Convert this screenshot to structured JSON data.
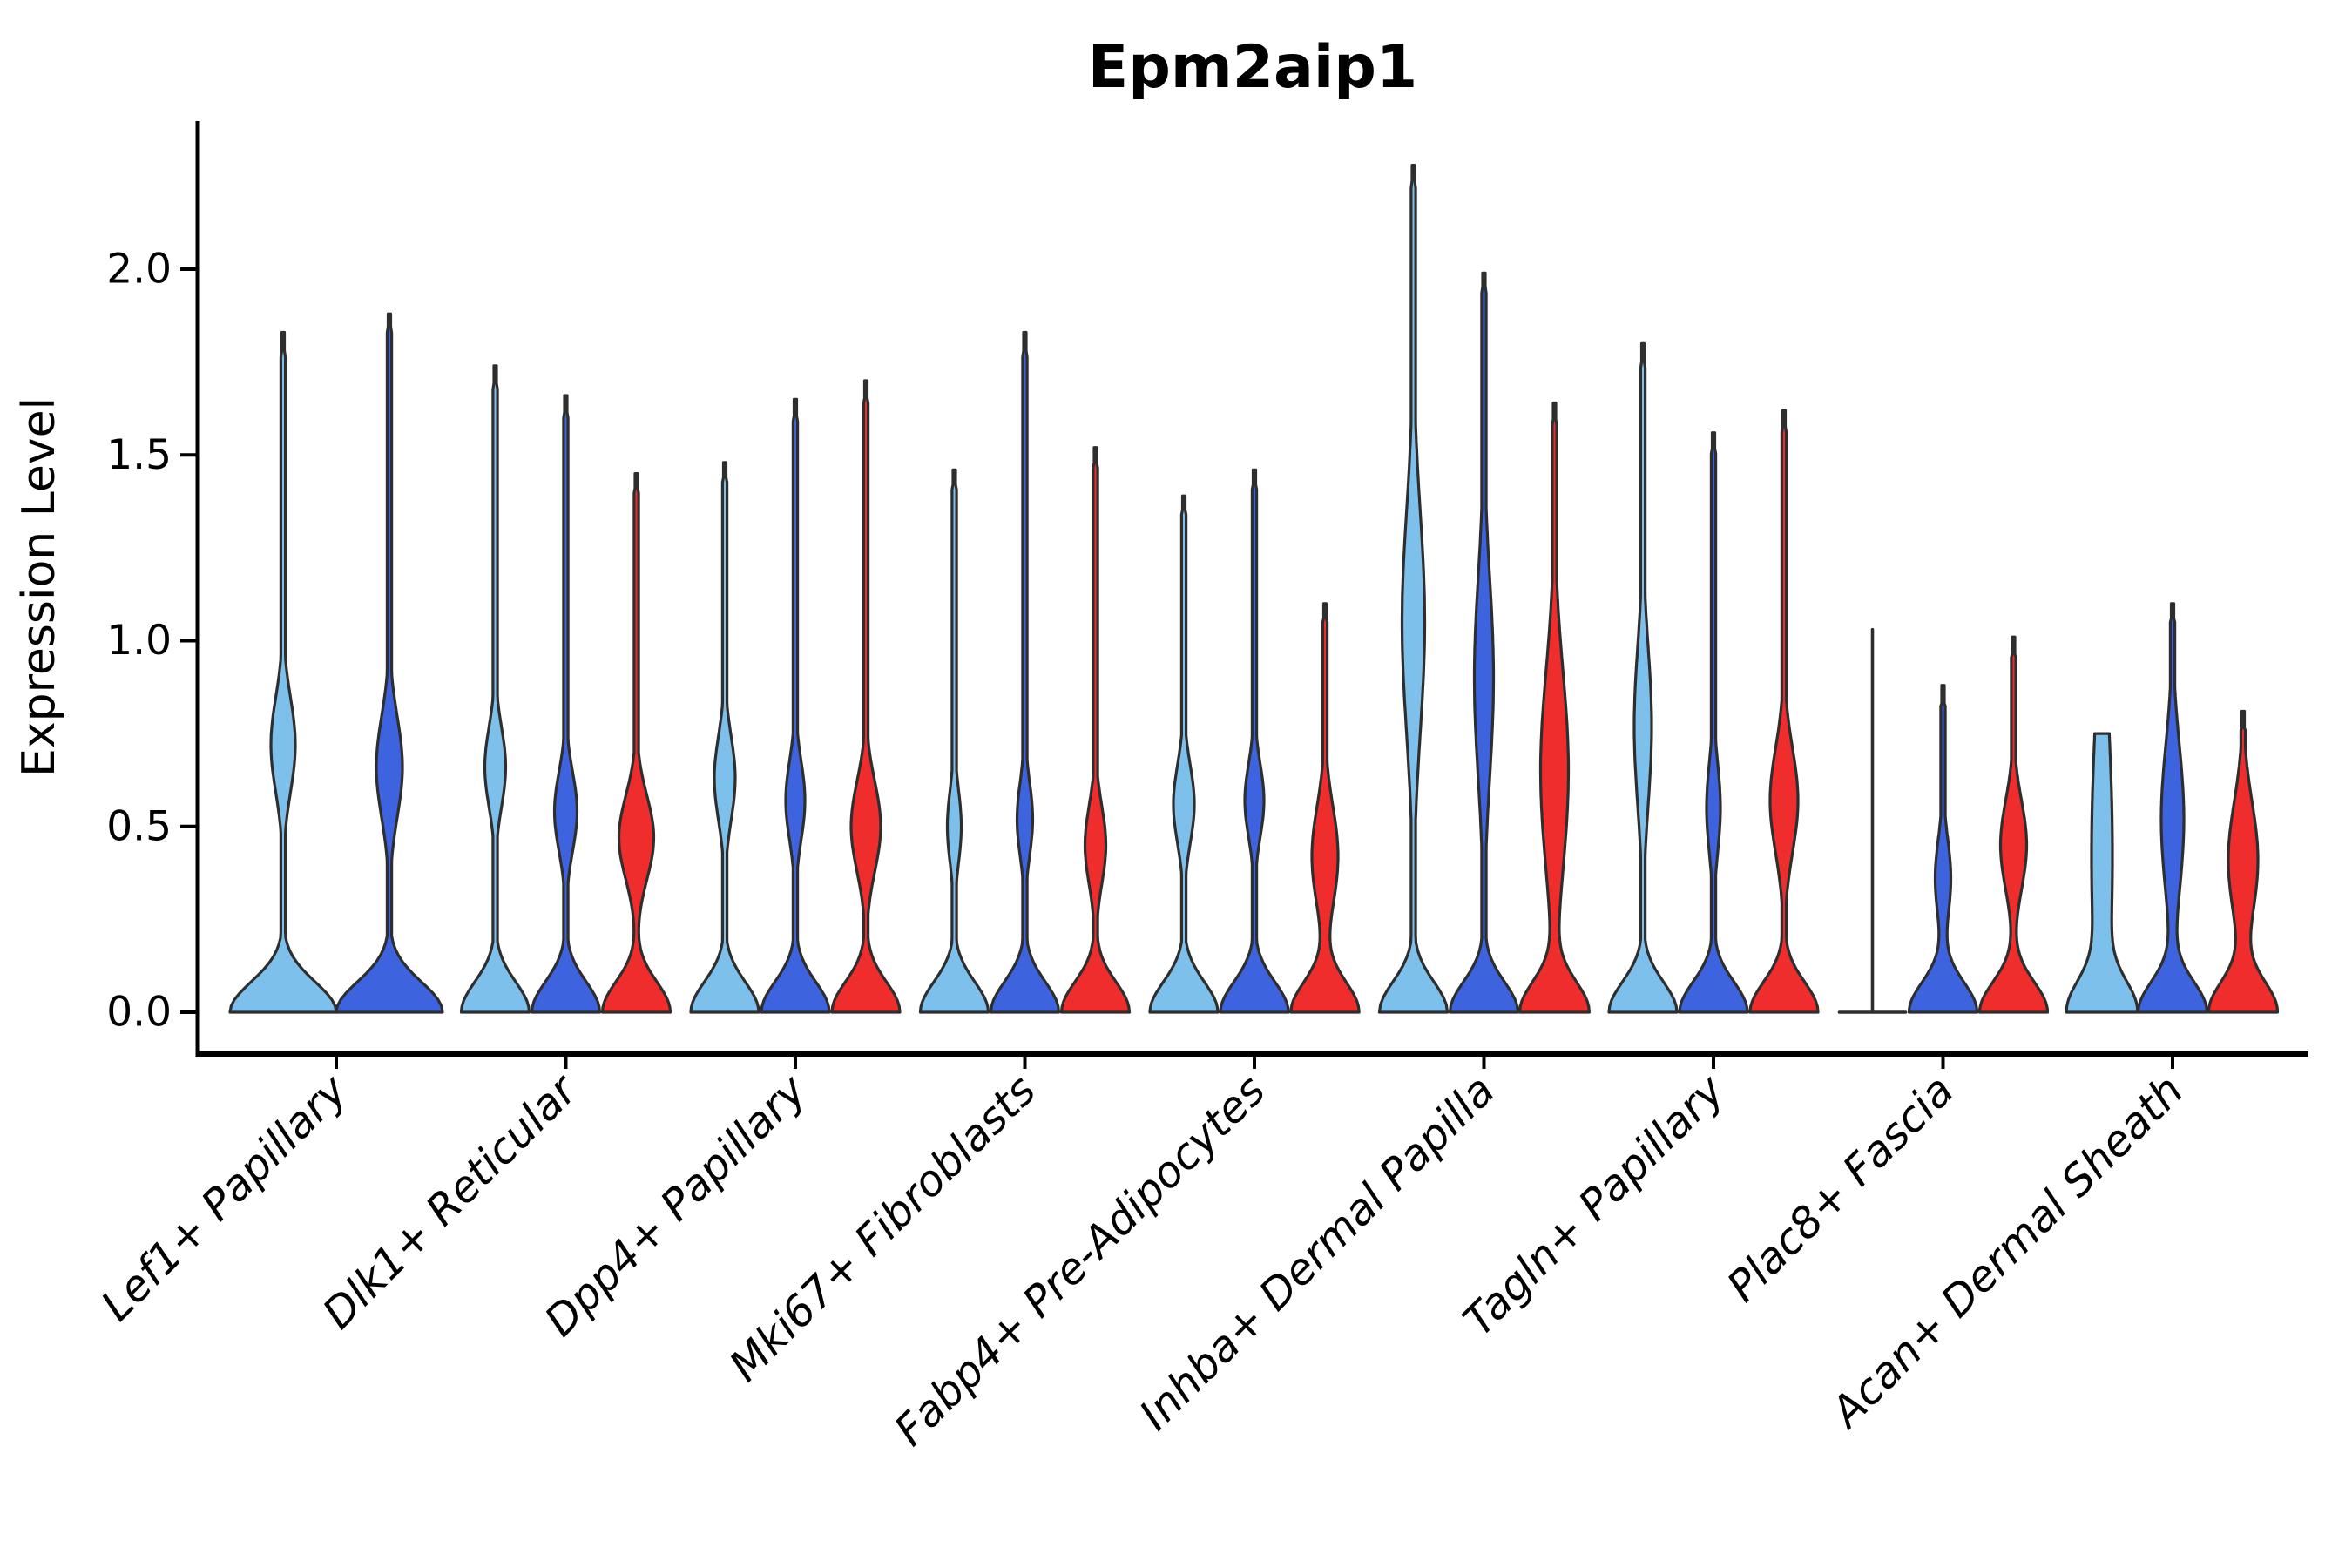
{
  "chart_data": {
    "type": "violin",
    "title": "Epm2aip1",
    "ylabel": "Expression Level",
    "yticks": [
      0.0,
      0.5,
      1.0,
      1.5,
      2.0
    ],
    "ylim": [
      -0.14,
      2.4
    ],
    "legend_position": "none",
    "grid": false,
    "colors": {
      "light_blue": "#7DC0EC",
      "dark_blue": "#3D64DE",
      "red": "#EF2D2D",
      "outline": "#2E2E2E",
      "axis": "#000000"
    },
    "groups": [
      {
        "label": "Lef1+ Papillary",
        "violins": [
          {
            "color": "light_blue",
            "shape": "violin",
            "max": 1.83,
            "mode": 0.72,
            "spread": 0.18,
            "bulge_hw": 14,
            "base_hw": 61
          },
          {
            "color": "dark_blue",
            "shape": "violin",
            "max": 1.88,
            "mode": 0.66,
            "spread": 0.19,
            "bulge_hw": 15,
            "base_hw": 61
          }
        ]
      },
      {
        "label": "Dlk1+ Reticular",
        "violins": [
          {
            "color": "light_blue",
            "shape": "violin",
            "max": 1.74,
            "mode": 0.66,
            "spread": 0.15,
            "bulge_hw": 12,
            "base_hw": 39
          },
          {
            "color": "dark_blue",
            "shape": "violin",
            "max": 1.66,
            "mode": 0.54,
            "spread": 0.15,
            "bulge_hw": 13,
            "base_hw": 39
          },
          {
            "color": "red",
            "shape": "violin",
            "max": 1.45,
            "mode": 0.47,
            "spread": 0.16,
            "bulge_hw": 20,
            "base_hw": 39
          }
        ]
      },
      {
        "label": "Dpp4+ Papillary",
        "violins": [
          {
            "color": "light_blue",
            "shape": "violin",
            "max": 1.48,
            "mode": 0.63,
            "spread": 0.16,
            "bulge_hw": 12,
            "base_hw": 39
          },
          {
            "color": "dark_blue",
            "shape": "violin",
            "max": 1.65,
            "mode": 0.57,
            "spread": 0.15,
            "bulge_hw": 11,
            "base_hw": 39
          },
          {
            "color": "red",
            "shape": "violin",
            "max": 1.7,
            "mode": 0.5,
            "spread": 0.17,
            "bulge_hw": 17,
            "base_hw": 39
          }
        ]
      },
      {
        "label": "Mki67+ Fibroblasts",
        "violins": [
          {
            "color": "light_blue",
            "shape": "violin",
            "max": 1.46,
            "mode": 0.5,
            "spread": 0.14,
            "bulge_hw": 8,
            "base_hw": 39
          },
          {
            "color": "dark_blue",
            "shape": "violin",
            "max": 1.83,
            "mode": 0.52,
            "spread": 0.14,
            "bulge_hw": 9,
            "base_hw": 39
          },
          {
            "color": "red",
            "shape": "violin",
            "max": 1.52,
            "mode": 0.45,
            "spread": 0.15,
            "bulge_hw": 12,
            "base_hw": 39
          }
        ]
      },
      {
        "label": "Fabp4+ Pre-Adipocytes",
        "violins": [
          {
            "color": "light_blue",
            "shape": "violin",
            "max": 1.39,
            "mode": 0.56,
            "spread": 0.15,
            "bulge_hw": 12,
            "base_hw": 39
          },
          {
            "color": "dark_blue",
            "shape": "violin",
            "max": 1.46,
            "mode": 0.57,
            "spread": 0.14,
            "bulge_hw": 11,
            "base_hw": 39
          },
          {
            "color": "red",
            "shape": "violin",
            "max": 1.1,
            "mode": 0.42,
            "spread": 0.19,
            "bulge_hw": 15,
            "base_hw": 39
          }
        ]
      },
      {
        "label": "Inhba+ Dermal Papilla",
        "violins": [
          {
            "color": "light_blue",
            "shape": "violin",
            "max": 2.28,
            "mode": 1.05,
            "spread": 0.42,
            "bulge_hw": 13,
            "base_hw": 39
          },
          {
            "color": "dark_blue",
            "shape": "violin",
            "max": 1.99,
            "mode": 0.9,
            "spread": 0.38,
            "bulge_hw": 11,
            "base_hw": 39
          },
          {
            "color": "red",
            "shape": "violin",
            "max": 1.64,
            "mode": 0.65,
            "spread": 0.38,
            "bulge_hw": 16,
            "base_hw": 39
          }
        ]
      },
      {
        "label": "Tagln+ Papillary",
        "violins": [
          {
            "color": "light_blue",
            "shape": "violin",
            "max": 1.8,
            "mode": 0.77,
            "spread": 0.3,
            "bulge_hw": 10,
            "base_hw": 39
          },
          {
            "color": "dark_blue",
            "shape": "violin",
            "max": 1.56,
            "mode": 0.55,
            "spread": 0.17,
            "bulge_hw": 8,
            "base_hw": 39
          },
          {
            "color": "red",
            "shape": "violin",
            "max": 1.62,
            "mode": 0.57,
            "spread": 0.2,
            "bulge_hw": 16,
            "base_hw": 39
          }
        ]
      },
      {
        "label": "Plac8+ Fascia",
        "violins": [
          {
            "color": "light_blue",
            "shape": "line",
            "max": 1.03,
            "mode": 0.0,
            "spread": 0.1,
            "bulge_hw": 0,
            "base_hw": 38
          },
          {
            "color": "dark_blue",
            "shape": "violin",
            "max": 0.88,
            "mode": 0.36,
            "spread": 0.15,
            "bulge_hw": 9,
            "base_hw": 39
          },
          {
            "color": "red",
            "shape": "violin",
            "max": 1.01,
            "mode": 0.45,
            "spread": 0.17,
            "bulge_hw": 15,
            "base_hw": 39
          }
        ]
      },
      {
        "label": "Acan+ Dermal Sheath",
        "violins": [
          {
            "color": "light_blue",
            "shape": "flat_top",
            "max": 0.75,
            "mode": 0.42,
            "spread": 0.55,
            "bulge_hw": 12,
            "base_hw": 34
          },
          {
            "color": "dark_blue",
            "shape": "violin",
            "max": 1.1,
            "mode": 0.52,
            "spread": 0.28,
            "bulge_hw": 13,
            "base_hw": 39
          },
          {
            "color": "red",
            "shape": "violin",
            "max": 0.81,
            "mode": 0.41,
            "spread": 0.22,
            "bulge_hw": 17,
            "base_hw": 39
          }
        ]
      }
    ]
  }
}
